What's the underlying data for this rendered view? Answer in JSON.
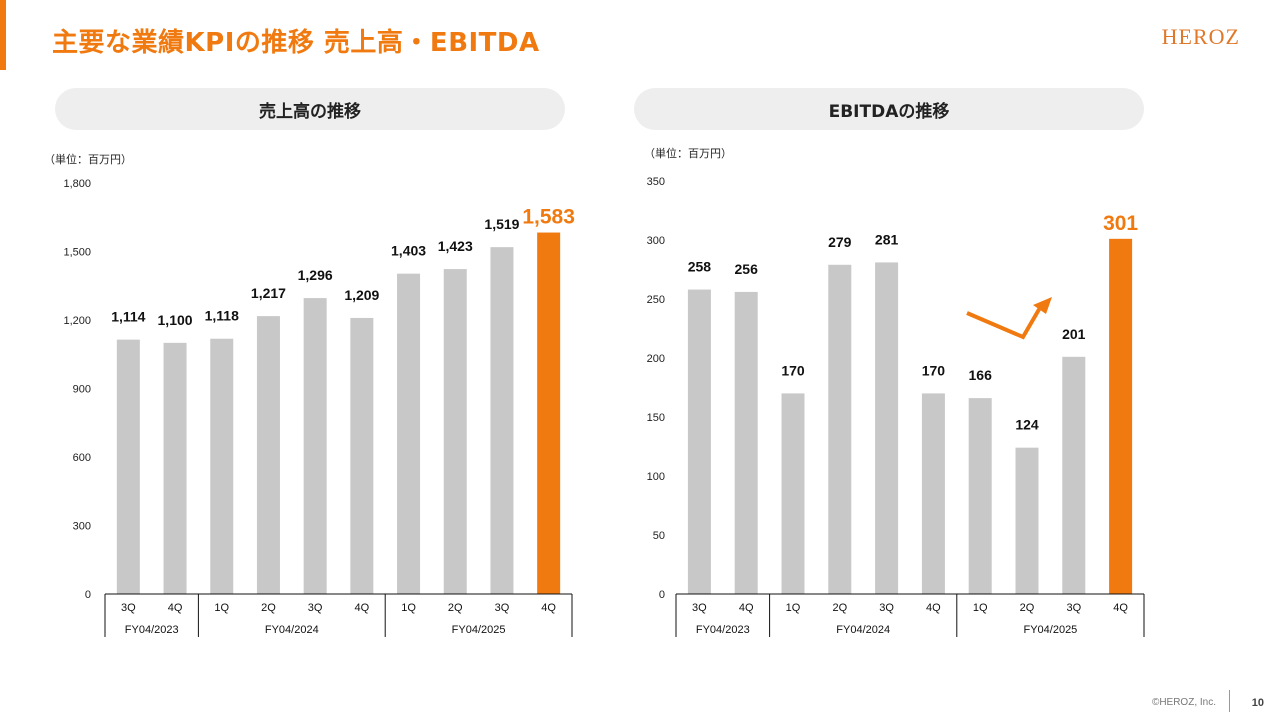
{
  "header": {
    "title": "主要な業績KPIの推移 売上高・EBITDA",
    "logo_text": "HEROZ",
    "accent_color": "#F07A10"
  },
  "footer": {
    "copyright": "©HEROZ, Inc.",
    "page_number": "10"
  },
  "colors": {
    "bar_default": "#C8C8C8",
    "bar_highlight": "#F07A10",
    "axis": "#111111"
  },
  "panels": [
    {
      "pill_label": "売上高の推移",
      "unit_label": "（単位：百万円）"
    },
    {
      "pill_label": "EBITDAの推移",
      "unit_label": "（単位：百万円）"
    }
  ],
  "chart_data": [
    {
      "type": "bar",
      "title": "売上高の推移",
      "categories": [
        "3Q",
        "4Q",
        "1Q",
        "2Q",
        "3Q",
        "4Q",
        "1Q",
        "2Q",
        "3Q",
        "4Q"
      ],
      "groups": [
        {
          "label": "FY04/2023",
          "count": 2
        },
        {
          "label": "FY04/2024",
          "count": 4
        },
        {
          "label": "FY04/2025",
          "count": 4
        }
      ],
      "values": [
        1114,
        1100,
        1118,
        1217,
        1296,
        1209,
        1403,
        1423,
        1519,
        1583
      ],
      "value_labels": [
        "1,114",
        "1,100",
        "1,118",
        "1,217",
        "1,296",
        "1,209",
        "1,403",
        "1,423",
        "1,519",
        "1,583"
      ],
      "highlight_index": 9,
      "ylim": [
        0,
        1800
      ],
      "yticks": [
        0,
        300,
        600,
        900,
        1200,
        1500,
        1800
      ],
      "ytick_labels": [
        "0",
        "300",
        "600",
        "900",
        "1,200",
        "1,500",
        "1,800"
      ],
      "grid": false
    },
    {
      "type": "bar",
      "title": "EBITDAの推移",
      "categories": [
        "3Q",
        "4Q",
        "1Q",
        "2Q",
        "3Q",
        "4Q",
        "1Q",
        "2Q",
        "3Q",
        "4Q"
      ],
      "groups": [
        {
          "label": "FY04/2023",
          "count": 2
        },
        {
          "label": "FY04/2024",
          "count": 4
        },
        {
          "label": "FY04/2025",
          "count": 4
        }
      ],
      "values": [
        258,
        256,
        170,
        279,
        281,
        170,
        166,
        124,
        201,
        301
      ],
      "value_labels": [
        "258",
        "256",
        "170",
        "279",
        "281",
        "170",
        "166",
        "124",
        "201",
        "301"
      ],
      "highlight_index": 9,
      "ylim": [
        0,
        350
      ],
      "yticks": [
        0,
        50,
        100,
        150,
        200,
        250,
        300,
        350
      ],
      "ytick_labels": [
        "0",
        "50",
        "100",
        "150",
        "200",
        "250",
        "300",
        "350"
      ],
      "grid": false,
      "annotation": "upward-trend-arrow"
    }
  ]
}
